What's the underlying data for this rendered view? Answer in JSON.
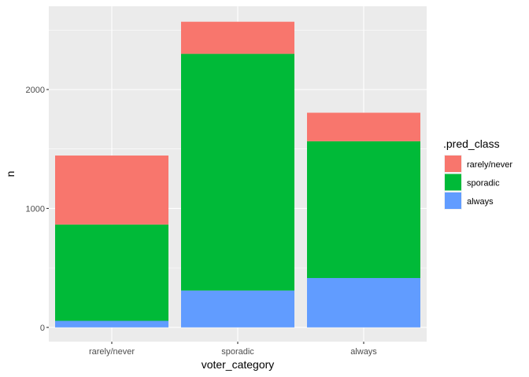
{
  "chart_data": {
    "type": "bar",
    "stacked": true,
    "categories": [
      "rarely/never",
      "sporadic",
      "always"
    ],
    "series": [
      {
        "name": "rarely/never",
        "color": "#F8766D",
        "values": [
          580,
          270,
          240
        ]
      },
      {
        "name": "sporadic",
        "color": "#00BA38",
        "values": [
          810,
          1990,
          1150
        ]
      },
      {
        "name": "always",
        "color": "#619CFF",
        "values": [
          55,
          310,
          415
        ]
      }
    ],
    "xlabel": "voter_category",
    "ylabel": "n",
    "ylim": [
      -120,
      2700
    ],
    "yticks": [
      0,
      1000,
      2000
    ],
    "ytick_labels": [
      "0",
      "1000",
      "2000"
    ],
    "grid": true,
    "panel_background": "#EBEBEB",
    "legend": {
      "title": ".pred_class",
      "placement": "right",
      "entries": [
        "rarely/never",
        "sporadic",
        "always"
      ]
    }
  }
}
